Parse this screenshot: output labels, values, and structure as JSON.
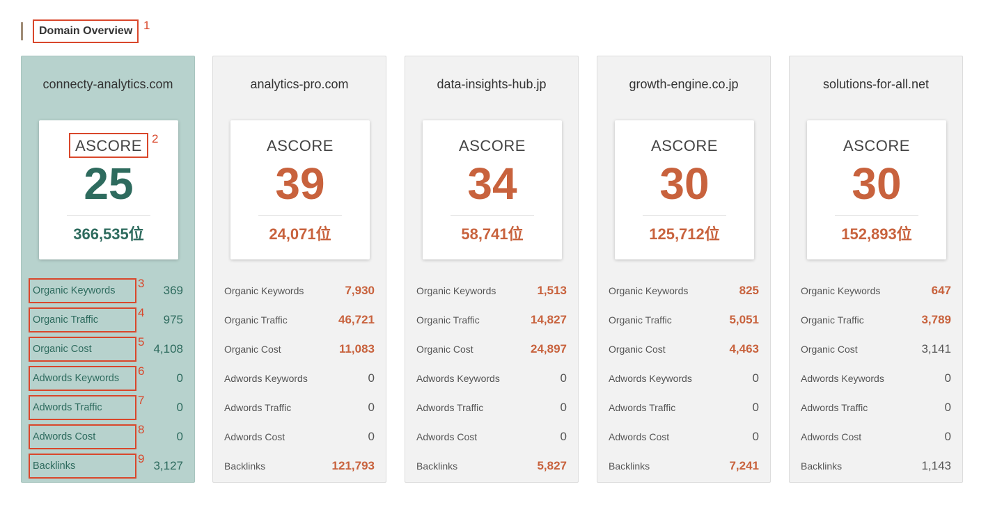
{
  "header": {
    "title": "Domain Overview"
  },
  "annotations": {
    "header": "1",
    "ascore": "2",
    "metrics": [
      "3",
      "4",
      "5",
      "6",
      "7",
      "8",
      "9"
    ]
  },
  "score_label": "ASCORE",
  "metric_labels": [
    "Organic Keywords",
    "Organic Traffic",
    "Organic Cost",
    "Adwords Keywords",
    "Adwords Traffic",
    "Adwords Cost",
    "Backlinks"
  ],
  "colors": {
    "accent": "#c8623d",
    "main_text": "#2e6b5e",
    "main_bg": "#b7d2cd",
    "annotation": "#d9472b"
  },
  "cards": [
    {
      "domain": "connecty-analytics.com",
      "ascore": "25",
      "rank": "366,535位",
      "metrics": [
        {
          "value": "369",
          "highlight": false
        },
        {
          "value": "975",
          "highlight": false
        },
        {
          "value": "4,108",
          "highlight": false
        },
        {
          "value": "0",
          "highlight": false
        },
        {
          "value": "0",
          "highlight": false
        },
        {
          "value": "0",
          "highlight": false
        },
        {
          "value": "3,127",
          "highlight": false
        }
      ]
    },
    {
      "domain": "analytics-pro.com",
      "ascore": "39",
      "rank": "24,071位",
      "metrics": [
        {
          "value": "7,930",
          "highlight": true
        },
        {
          "value": "46,721",
          "highlight": true
        },
        {
          "value": "11,083",
          "highlight": true
        },
        {
          "value": "0",
          "highlight": false
        },
        {
          "value": "0",
          "highlight": false
        },
        {
          "value": "0",
          "highlight": false
        },
        {
          "value": "121,793",
          "highlight": true
        }
      ]
    },
    {
      "domain": "data-insights-hub.jp",
      "ascore": "34",
      "rank": "58,741位",
      "metrics": [
        {
          "value": "1,513",
          "highlight": true
        },
        {
          "value": "14,827",
          "highlight": true
        },
        {
          "value": "24,897",
          "highlight": true
        },
        {
          "value": "0",
          "highlight": false
        },
        {
          "value": "0",
          "highlight": false
        },
        {
          "value": "0",
          "highlight": false
        },
        {
          "value": "5,827",
          "highlight": true
        }
      ]
    },
    {
      "domain": "growth-engine.co.jp",
      "ascore": "30",
      "rank": "125,712位",
      "metrics": [
        {
          "value": "825",
          "highlight": true
        },
        {
          "value": "5,051",
          "highlight": true
        },
        {
          "value": "4,463",
          "highlight": true
        },
        {
          "value": "0",
          "highlight": false
        },
        {
          "value": "0",
          "highlight": false
        },
        {
          "value": "0",
          "highlight": false
        },
        {
          "value": "7,241",
          "highlight": true
        }
      ]
    },
    {
      "domain": "solutions-for-all.net",
      "ascore": "30",
      "rank": "152,893位",
      "metrics": [
        {
          "value": "647",
          "highlight": true
        },
        {
          "value": "3,789",
          "highlight": true
        },
        {
          "value": "3,141",
          "highlight": false
        },
        {
          "value": "0",
          "highlight": false
        },
        {
          "value": "0",
          "highlight": false
        },
        {
          "value": "0",
          "highlight": false
        },
        {
          "value": "1,143",
          "highlight": false
        }
      ]
    }
  ]
}
